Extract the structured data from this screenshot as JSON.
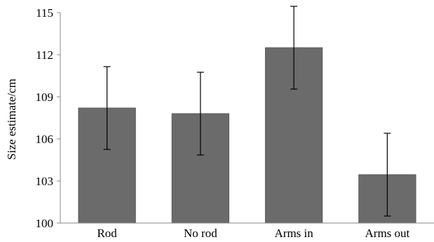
{
  "chart_data": {
    "type": "bar",
    "title": "",
    "xlabel": "",
    "ylabel": "Size estimate/cm",
    "ylim": [
      100,
      115
    ],
    "yticks": [
      100,
      103,
      106,
      109,
      112,
      115
    ],
    "grid": false,
    "categories": [
      "Rod",
      "No rod",
      "Arms in",
      "Arms out"
    ],
    "values": [
      108.2,
      107.8,
      112.5,
      103.45
    ],
    "error_bars": [
      2.95,
      2.95,
      2.95,
      2.95
    ],
    "colors": {
      "bar": "#6b6b6b",
      "bar_edge": "#595959",
      "error_bar": "#000000",
      "axis": "#888888"
    }
  }
}
